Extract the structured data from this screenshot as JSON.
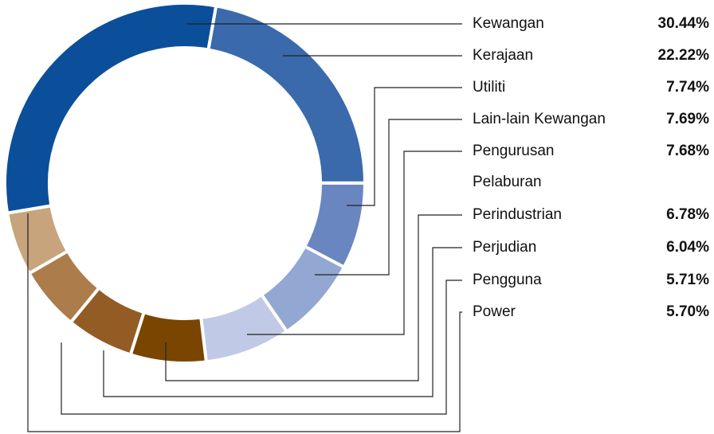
{
  "chart_data": {
    "type": "donut",
    "categories": [
      "Kewangan",
      "Kerajaan",
      "Utiliti",
      "Lain-lain Kewangan",
      "Pengurusan Pelaburan",
      "Perindustrian",
      "Perjudian",
      "Pengguna",
      "Power"
    ],
    "values": [
      30.44,
      22.22,
      7.74,
      7.69,
      7.68,
      6.78,
      6.04,
      5.71,
      5.7
    ],
    "value_labels": [
      "30.44%",
      "22.22%",
      "7.74%",
      "7.69%",
      "7.68%",
      "6.78%",
      "6.04%",
      "5.71%",
      "5.70%"
    ],
    "colors": [
      "#0b4f9b",
      "#3a69ac",
      "#6a86c0",
      "#93a7d3",
      "#c0cae6",
      "#7a4500",
      "#935c24",
      "#ad7c4b",
      "#c8a47c"
    ]
  }
}
